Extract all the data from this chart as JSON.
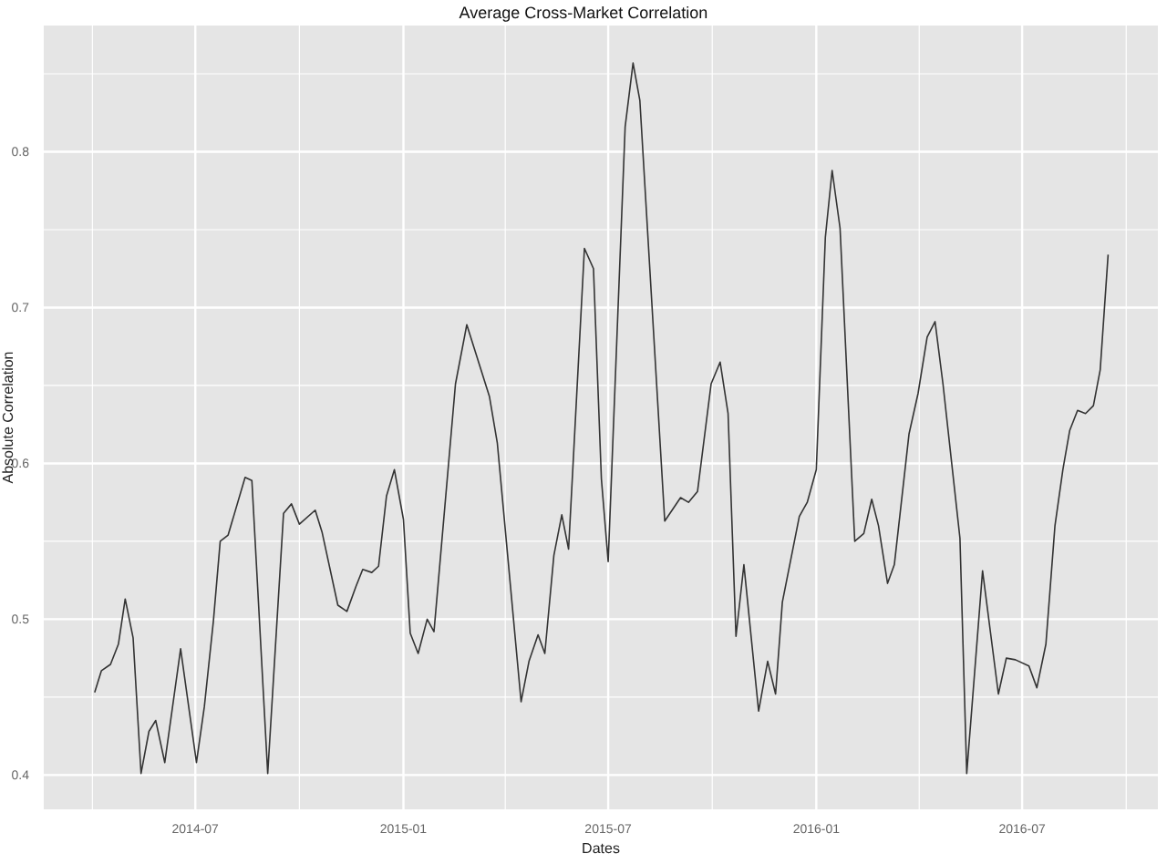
{
  "chart_data": {
    "type": "line",
    "title": "Average Cross-Market Correlation",
    "xlabel": "Dates",
    "ylabel": "Absolute Correlation",
    "x": [
      "2014-04-03",
      "2014-04-09",
      "2014-04-17",
      "2014-04-24",
      "2014-04-30",
      "2014-05-07",
      "2014-05-14",
      "2014-05-21",
      "2014-05-27",
      "2014-06-04",
      "2014-06-18",
      "2014-07-02",
      "2014-07-09",
      "2014-07-17",
      "2014-07-23",
      "2014-07-30",
      "2014-08-14",
      "2014-08-20",
      "2014-09-03",
      "2014-09-17",
      "2014-09-24",
      "2014-10-01",
      "2014-10-15",
      "2014-10-21",
      "2014-11-04",
      "2014-11-12",
      "2014-11-20",
      "2014-11-26",
      "2014-12-04",
      "2014-12-10",
      "2014-12-17",
      "2014-12-24",
      "2015-01-01",
      "2015-01-07",
      "2015-01-14",
      "2015-01-22",
      "2015-01-28",
      "2015-02-16",
      "2015-02-26",
      "2015-03-18",
      "2015-03-25",
      "2015-04-15",
      "2015-04-22",
      "2015-04-30",
      "2015-05-06",
      "2015-05-14",
      "2015-05-21",
      "2015-05-27",
      "2015-06-10",
      "2015-06-18",
      "2015-06-25",
      "2015-07-01",
      "2015-07-16",
      "2015-07-23",
      "2015-07-29",
      "2015-08-20",
      "2015-09-03",
      "2015-09-10",
      "2015-09-18",
      "2015-09-30",
      "2015-10-08",
      "2015-10-15",
      "2015-10-22",
      "2015-10-29",
      "2015-11-11",
      "2015-11-19",
      "2015-11-26",
      "2015-12-02",
      "2015-12-17",
      "2015-12-24",
      "2016-01-01",
      "2016-01-09",
      "2016-01-15",
      "2016-01-22",
      "2016-02-04",
      "2016-02-12",
      "2016-02-19",
      "2016-02-25",
      "2016-03-04",
      "2016-03-10",
      "2016-03-23",
      "2016-03-31",
      "2016-04-08",
      "2016-04-15",
      "2016-04-22",
      "2016-05-07",
      "2016-05-13",
      "2016-05-27",
      "2016-06-10",
      "2016-06-17",
      "2016-06-25",
      "2016-07-07",
      "2016-07-14",
      "2016-07-22",
      "2016-07-30",
      "2016-08-06",
      "2016-08-12",
      "2016-08-19",
      "2016-08-26",
      "2016-09-02",
      "2016-09-08",
      "2016-09-15"
    ],
    "series": [
      {
        "color": "#333333",
        "values": [
          0.453,
          0.467,
          0.471,
          0.484,
          0.513,
          0.488,
          0.401,
          0.428,
          0.435,
          0.408,
          0.481,
          0.408,
          0.444,
          0.499,
          0.55,
          0.554,
          0.591,
          0.589,
          0.401,
          0.568,
          0.574,
          0.561,
          0.57,
          0.556,
          0.509,
          0.505,
          0.521,
          0.532,
          0.53,
          0.534,
          0.579,
          0.596,
          0.564,
          0.491,
          0.478,
          0.5,
          0.492,
          0.651,
          0.689,
          0.643,
          0.613,
          0.447,
          0.473,
          0.49,
          0.478,
          0.541,
          0.567,
          0.545,
          0.738,
          0.725,
          0.59,
          0.537,
          0.816,
          0.857,
          0.833,
          0.563,
          0.578,
          0.575,
          0.582,
          0.651,
          0.665,
          0.632,
          0.489,
          0.535,
          0.441,
          0.473,
          0.452,
          0.511,
          0.566,
          0.575,
          0.596,
          0.745,
          0.788,
          0.751,
          0.55,
          0.555,
          0.577,
          0.56,
          0.523,
          0.535,
          0.619,
          0.645,
          0.681,
          0.691,
          0.651,
          0.552,
          0.401,
          0.531,
          0.452,
          0.475,
          0.474,
          0.47,
          0.456,
          0.484,
          0.56,
          0.596,
          0.621,
          0.634,
          0.632,
          0.637,
          0.66,
          0.734
        ]
      }
    ],
    "xlim": [
      "2014-02-17",
      "2016-10-29"
    ],
    "xticks": [
      {
        "value": "2014-04-01",
        "label": null
      },
      {
        "value": "2014-07-01",
        "label": "2014-07"
      },
      {
        "value": "2014-10-01",
        "label": null
      },
      {
        "value": "2015-01-01",
        "label": "2015-01"
      },
      {
        "value": "2015-04-01",
        "label": null
      },
      {
        "value": "2015-07-01",
        "label": "2015-07"
      },
      {
        "value": "2015-10-01",
        "label": null
      },
      {
        "value": "2016-01-01",
        "label": "2016-01"
      },
      {
        "value": "2016-04-01",
        "label": null
      },
      {
        "value": "2016-07-01",
        "label": "2016-07"
      },
      {
        "value": "2016-10-01",
        "label": null
      }
    ],
    "ylim": [
      0.378,
      0.881
    ],
    "yticks": [
      0.4,
      {
        "value": 0.45,
        "label": null
      },
      0.5,
      {
        "value": 0.55,
        "label": null
      },
      0.6,
      {
        "value": 0.65,
        "label": null
      },
      0.7,
      {
        "value": 0.75,
        "label": null
      },
      0.8,
      {
        "value": 0.85,
        "label": null
      }
    ],
    "grid": true,
    "marker": "none",
    "line_style": "solid"
  }
}
